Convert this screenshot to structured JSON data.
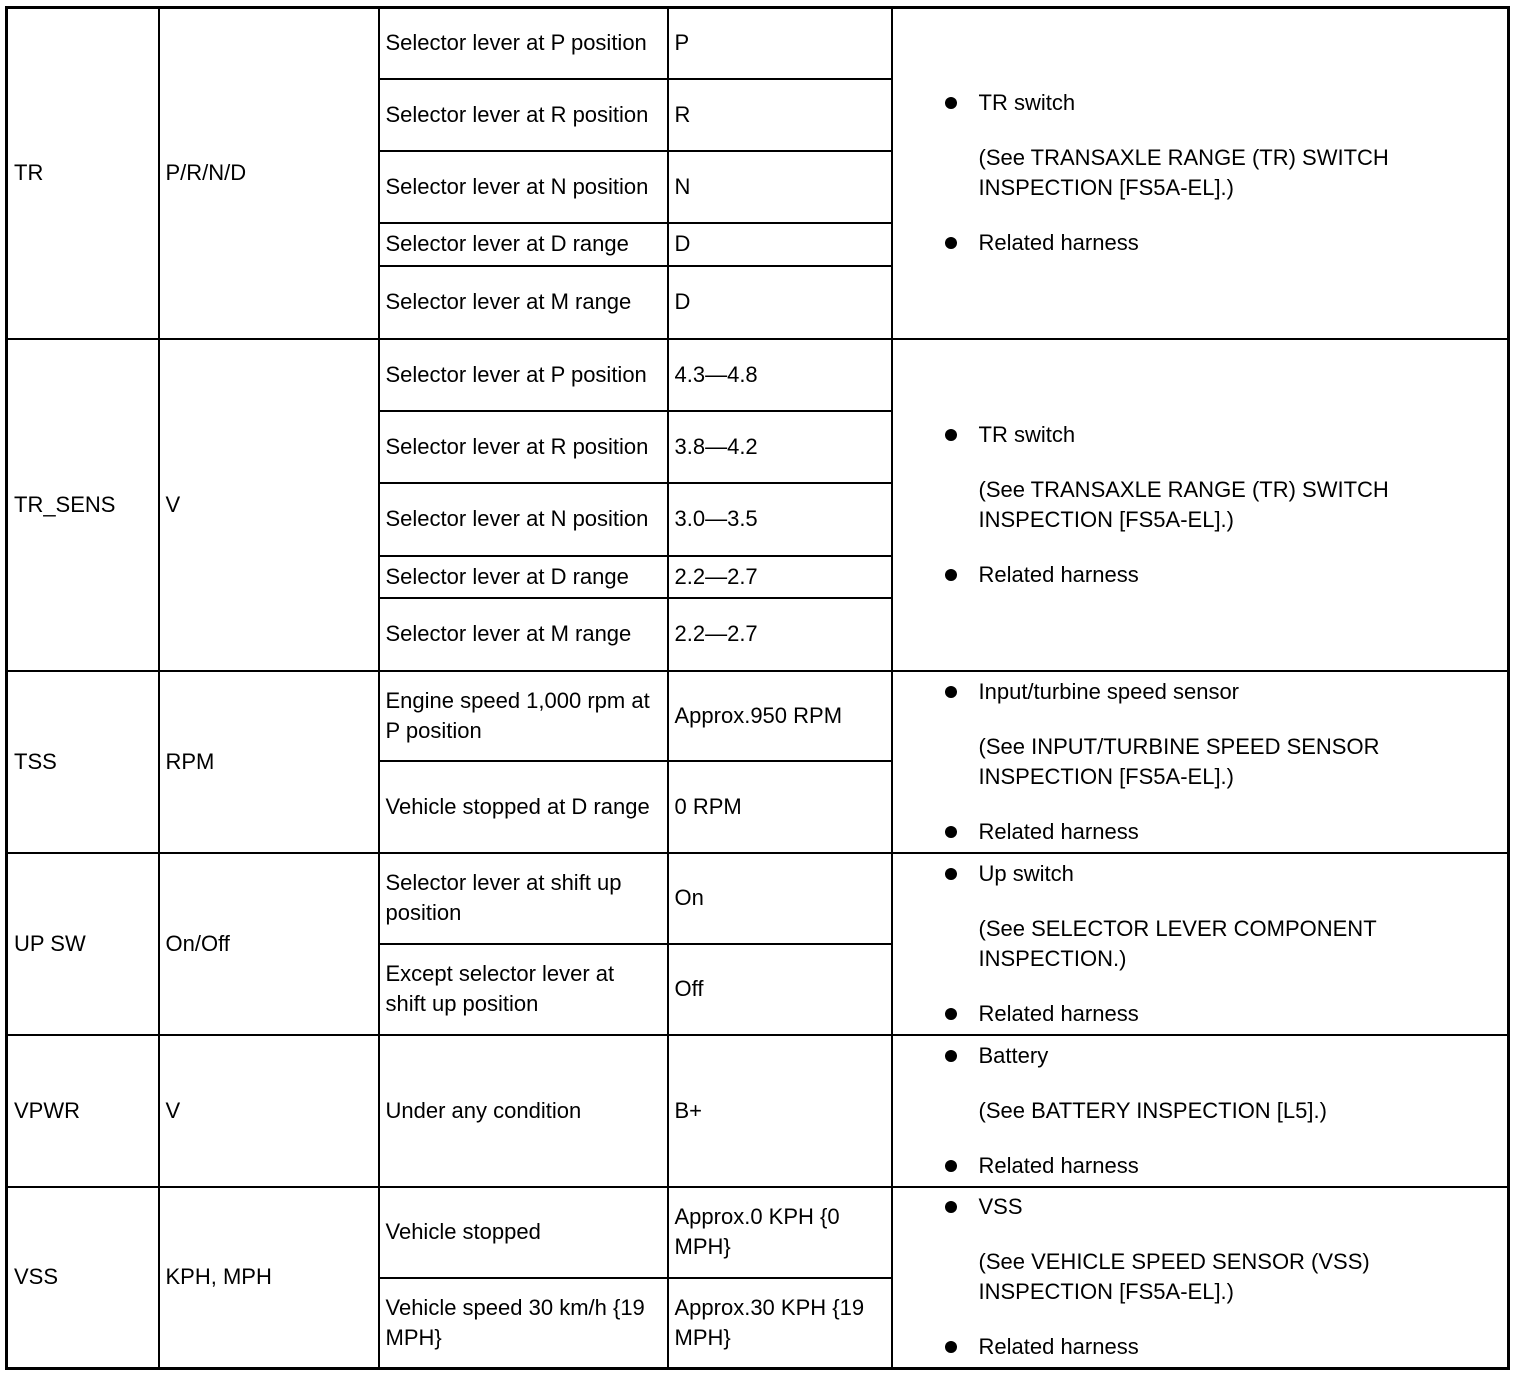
{
  "rows": [
    {
      "pid": "TR",
      "unit": "P/R/N/D",
      "conds": [
        {
          "condition": "Selector lever at P position",
          "value": "P"
        },
        {
          "condition": "Selector lever at R position",
          "value": "R"
        },
        {
          "condition": "Selector lever at N position",
          "value": "N"
        },
        {
          "condition": "Selector lever at D range",
          "value": "D"
        },
        {
          "condition": "Selector lever at M range",
          "value": "D"
        }
      ],
      "remedy": {
        "item": "TR switch",
        "note": "(See TRANSAXLE RANGE (TR) SWITCH INSPECTION [FS5A-EL].)",
        "item2": "Related harness"
      }
    },
    {
      "pid": "TR_SENS",
      "unit": "V",
      "conds": [
        {
          "condition": "Selector lever at P position",
          "value": "4.3—4.8"
        },
        {
          "condition": "Selector lever at R position",
          "value": "3.8—4.2"
        },
        {
          "condition": "Selector lever at N position",
          "value": "3.0—3.5"
        },
        {
          "condition": "Selector lever at D range",
          "value": "2.2—2.7"
        },
        {
          "condition": "Selector lever at M range",
          "value": "2.2—2.7"
        }
      ],
      "remedy": {
        "item": "TR switch",
        "note": "(See TRANSAXLE RANGE (TR) SWITCH INSPECTION [FS5A-EL].)",
        "item2": "Related harness"
      }
    },
    {
      "pid": "TSS",
      "unit": "RPM",
      "conds": [
        {
          "condition": "Engine speed 1,000 rpm at P position",
          "value": "Approx.950 RPM"
        },
        {
          "condition": "Vehicle stopped at D range",
          "value": "0 RPM"
        }
      ],
      "remedy": {
        "item": "Input/turbine speed sensor",
        "note": "(See INPUT/TURBINE SPEED SENSOR INSPECTION [FS5A-EL].)",
        "item2": "Related harness"
      }
    },
    {
      "pid": "UP SW",
      "unit": "On/Off",
      "conds": [
        {
          "condition": "Selector lever at shift up position",
          "value": "On"
        },
        {
          "condition": "Except selector lever at shift up position",
          "value": "Off"
        }
      ],
      "remedy": {
        "item": "Up switch",
        "note": "(See SELECTOR LEVER COMPONENT INSPECTION.)",
        "item2": "Related harness"
      }
    },
    {
      "pid": "VPWR",
      "unit": "V",
      "conds": [
        {
          "condition": "Under any condition",
          "value": "B+"
        }
      ],
      "remedy": {
        "item": "Battery",
        "note": "(See BATTERY INSPECTION [L5].)",
        "item2": "Related harness"
      }
    },
    {
      "pid": "VSS",
      "unit": "KPH, MPH",
      "conds": [
        {
          "condition": "Vehicle stopped",
          "value": "Approx.0 KPH {0 MPH}"
        },
        {
          "condition": "Vehicle speed 30 km/h {19 MPH}",
          "value": "Approx.30 KPH {19 MPH}"
        }
      ],
      "remedy": {
        "item": "VSS",
        "note": "(See VEHICLE SPEED SENSOR (VSS) INSPECTION [FS5A-EL].)",
        "item2": "Related harness"
      }
    }
  ]
}
